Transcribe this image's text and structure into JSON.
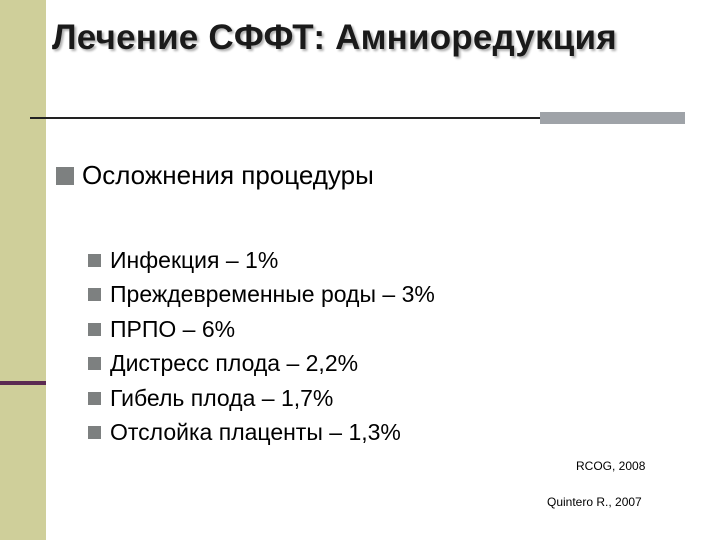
{
  "slide": {
    "title": "Лечение СФФТ: Амниоредукция",
    "main_bullet": "Осложнения процедуры",
    "sub_items": [
      {
        "label": "Инфекция – 1%"
      },
      {
        "label": "Преждевременные роды – 3%"
      },
      {
        "label": "ПРПО – 6%"
      },
      {
        "label": "Дистресс плода – 2,2%"
      },
      {
        "label": "Гибель плода – 1,7%"
      },
      {
        "label": "Отслойка плаценты – 1,3%"
      }
    ],
    "citations": [
      "RCOG, 2008",
      "Quintero R., 2007"
    ]
  },
  "colors": {
    "left_bar": "#cfcf9a",
    "left_bar_divider": "#5b2a52",
    "bullet": "#7d8080",
    "rule_accent": "#9fa3a8"
  }
}
